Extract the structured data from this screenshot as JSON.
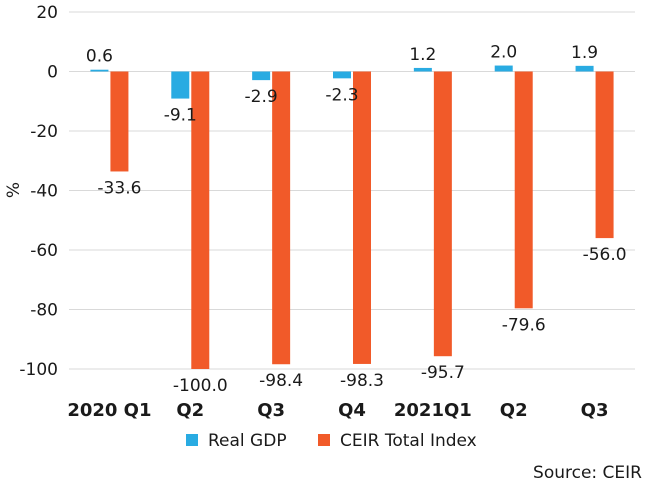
{
  "chart_data": {
    "type": "bar",
    "categories": [
      "2020 Q1",
      "Q2",
      "Q3",
      "Q4",
      "2021Q1",
      "Q2",
      "Q3"
    ],
    "series": [
      {
        "name": "Real GDP",
        "values": [
          0.6,
          -9.1,
          -2.9,
          -2.3,
          1.2,
          2.0,
          1.9
        ],
        "labels": [
          "0.6",
          "-9.1",
          "-2.9",
          "-2.3",
          "1.2",
          "2.0",
          "1.9"
        ],
        "color": "#29ABE2"
      },
      {
        "name": "CEIR Total Index",
        "values": [
          -33.6,
          -100.0,
          -98.4,
          -98.3,
          -95.7,
          -79.6,
          -56.0
        ],
        "labels": [
          "-33.6",
          "-100.0",
          "-98.4",
          "-98.3",
          "-95.7",
          "-79.6",
          "-56.0"
        ],
        "color": "#F15A29"
      }
    ],
    "ylabel": "%",
    "ylim": [
      -100,
      20
    ],
    "yticks": [
      20,
      0,
      -20,
      -40,
      -60,
      -80,
      -100
    ],
    "grid": true,
    "legend": "bottom"
  },
  "source": "Source: CEIR"
}
